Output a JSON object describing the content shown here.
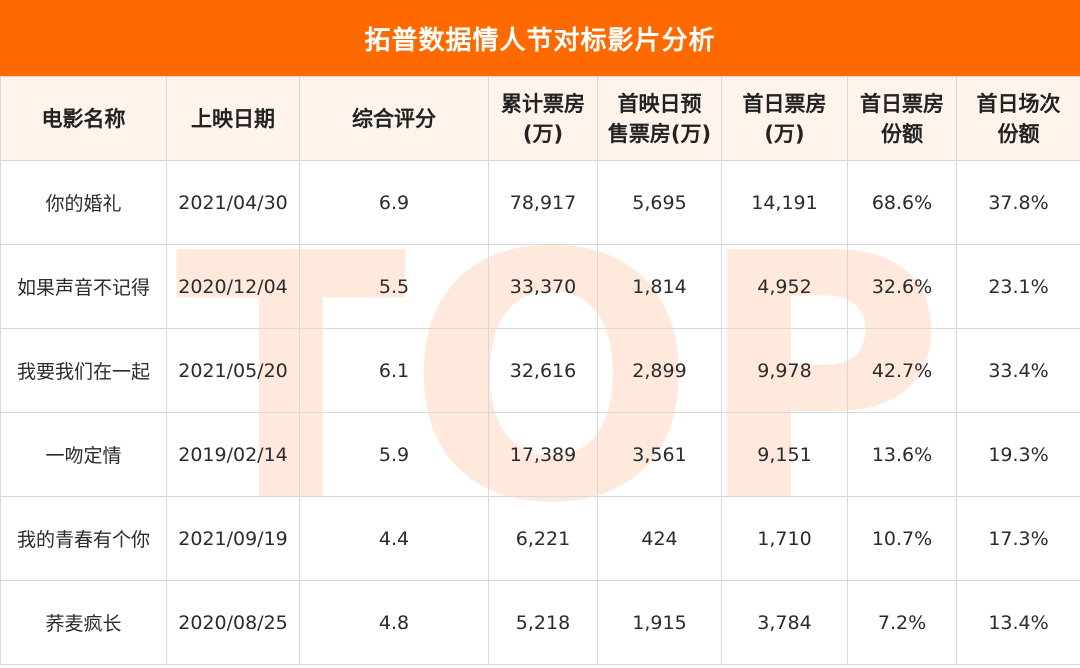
{
  "title": "拓普数据情人节对标影片分析",
  "watermark": "TOP",
  "headers": [
    [
      "电影名称"
    ],
    [
      "上映日期"
    ],
    [
      "综合评分"
    ],
    [
      "累计票房",
      "(万)"
    ],
    [
      "首映日预",
      "售票房(万)"
    ],
    [
      "首日票房",
      "(万)"
    ],
    [
      "首日票房",
      "份额"
    ],
    [
      "首日场次",
      "份额"
    ]
  ],
  "rows": [
    [
      "你的婚礼",
      "2021/04/30",
      "6.9",
      "78,917",
      "5,695",
      "14,191",
      "68.6%",
      "37.8%"
    ],
    [
      "如果声音不记得",
      "2020/12/04",
      "5.5",
      "33,370",
      "1,814",
      "4,952",
      "32.6%",
      "23.1%"
    ],
    [
      "我要我们在一起",
      "2021/05/20",
      "6.1",
      "32,616",
      "2,899",
      "9,978",
      "42.7%",
      "33.4%"
    ],
    [
      "一吻定情",
      "2019/02/14",
      "5.9",
      "17,389",
      "3,561",
      "9,151",
      "13.6%",
      "19.3%"
    ],
    [
      "我的青春有个你",
      "2021/09/19",
      "4.4",
      "6,221",
      "424",
      "1,710",
      "10.7%",
      "17.3%"
    ],
    [
      "荞麦疯长",
      "2020/08/25",
      "4.8",
      "5,218",
      "1,915",
      "3,784",
      "7.2%",
      "13.4%"
    ]
  ],
  "colors": {
    "accent": "#ff6a00",
    "header_bg": "#fef4ec",
    "grid": "#d9d9d9"
  }
}
